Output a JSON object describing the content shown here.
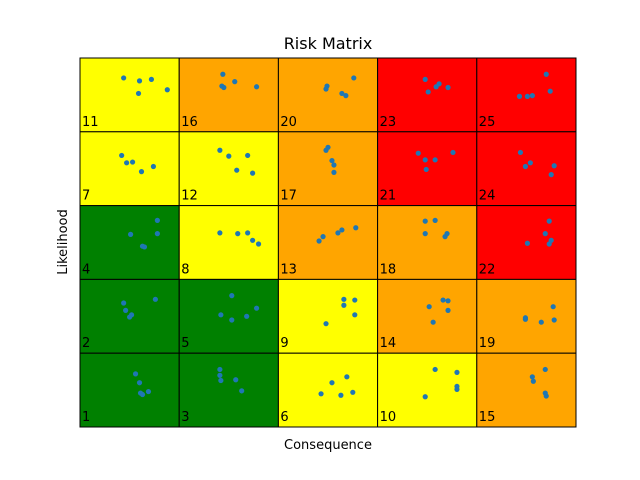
{
  "chart_data": {
    "type": "heatmap",
    "title": "Risk Matrix",
    "xlabel": "Consequence",
    "ylabel": "Likelihood",
    "rows": 5,
    "cols": 5,
    "cells": [
      [
        {
          "label": "11",
          "color": "#ffff00"
        },
        {
          "label": "16",
          "color": "#ffa500"
        },
        {
          "label": "20",
          "color": "#ffa500"
        },
        {
          "label": "23",
          "color": "#ff0000"
        },
        {
          "label": "25",
          "color": "#ff0000"
        }
      ],
      [
        {
          "label": "7",
          "color": "#ffff00"
        },
        {
          "label": "12",
          "color": "#ffff00"
        },
        {
          "label": "17",
          "color": "#ffa500"
        },
        {
          "label": "21",
          "color": "#ff0000"
        },
        {
          "label": "24",
          "color": "#ff0000"
        }
      ],
      [
        {
          "label": "4",
          "color": "#008000"
        },
        {
          "label": "8",
          "color": "#ffff00"
        },
        {
          "label": "13",
          "color": "#ffa500"
        },
        {
          "label": "18",
          "color": "#ffa500"
        },
        {
          "label": "22",
          "color": "#ff0000"
        }
      ],
      [
        {
          "label": "2",
          "color": "#008000"
        },
        {
          "label": "5",
          "color": "#008000"
        },
        {
          "label": "9",
          "color": "#ffff00"
        },
        {
          "label": "14",
          "color": "#ffa500"
        },
        {
          "label": "19",
          "color": "#ffa500"
        }
      ],
      [
        {
          "label": "1",
          "color": "#008000"
        },
        {
          "label": "3",
          "color": "#008000"
        },
        {
          "label": "6",
          "color": "#ffff00"
        },
        {
          "label": "10",
          "color": "#ffff00"
        },
        {
          "label": "15",
          "color": "#ffa500"
        }
      ]
    ],
    "point_color": "#1f77b4",
    "points": [
      [
        0.44,
        0.27
      ],
      [
        0.6,
        0.31
      ],
      [
        0.72,
        0.29
      ],
      [
        0.88,
        0.43
      ],
      [
        0.59,
        0.48
      ],
      [
        1.44,
        0.22
      ],
      [
        1.45,
        0.4
      ],
      [
        1.56,
        0.32
      ],
      [
        1.78,
        0.39
      ],
      [
        1.43,
        0.38
      ],
      [
        2.76,
        0.27
      ],
      [
        2.68,
        0.51
      ],
      [
        2.49,
        0.38
      ],
      [
        2.48,
        0.42
      ],
      [
        2.64,
        0.48
      ],
      [
        3.62,
        0.35
      ],
      [
        3.59,
        0.39
      ],
      [
        3.48,
        0.29
      ],
      [
        3.51,
        0.46
      ],
      [
        3.71,
        0.4
      ],
      [
        4.43,
        0.52
      ],
      [
        4.7,
        0.22
      ],
      [
        4.74,
        0.45
      ],
      [
        4.56,
        0.51
      ],
      [
        4.51,
        0.52
      ],
      [
        1.41,
        1.25
      ],
      [
        1.5,
        1.33
      ],
      [
        1.69,
        1.32
      ],
      [
        1.58,
        1.52
      ],
      [
        1.74,
        1.56
      ],
      [
        0.42,
        1.32
      ],
      [
        0.47,
        1.42
      ],
      [
        0.53,
        1.41
      ],
      [
        0.62,
        1.54
      ],
      [
        0.74,
        1.47
      ],
      [
        2.48,
        1.25
      ],
      [
        2.5,
        1.21
      ],
      [
        2.54,
        1.39
      ],
      [
        2.56,
        1.45
      ],
      [
        2.56,
        1.55
      ],
      [
        3.41,
        1.29
      ],
      [
        3.48,
        1.38
      ],
      [
        3.58,
        1.38
      ],
      [
        3.76,
        1.28
      ],
      [
        3.49,
        1.51
      ],
      [
        4.44,
        1.28
      ],
      [
        4.49,
        1.47
      ],
      [
        4.54,
        1.42
      ],
      [
        4.78,
        1.46
      ],
      [
        4.75,
        1.58
      ],
      [
        0.51,
        2.39
      ],
      [
        0.65,
        2.56
      ],
      [
        0.78,
        2.38
      ],
      [
        0.63,
        2.55
      ],
      [
        0.78,
        2.2
      ],
      [
        1.41,
        2.37
      ],
      [
        1.59,
        2.38
      ],
      [
        1.69,
        2.37
      ],
      [
        1.74,
        2.47
      ],
      [
        1.8,
        2.52
      ],
      [
        2.41,
        2.48
      ],
      [
        2.45,
        2.42
      ],
      [
        2.6,
        2.37
      ],
      [
        2.64,
        2.33
      ],
      [
        2.78,
        2.3
      ],
      [
        3.48,
        2.21
      ],
      [
        3.58,
        2.2
      ],
      [
        3.48,
        2.38
      ],
      [
        3.68,
        2.42
      ],
      [
        3.7,
        2.38
      ],
      [
        4.73,
        2.21
      ],
      [
        4.69,
        2.38
      ],
      [
        4.75,
        2.47
      ],
      [
        4.73,
        2.52
      ],
      [
        4.51,
        2.51
      ],
      [
        0.44,
        3.32
      ],
      [
        0.5,
        3.51
      ],
      [
        0.46,
        3.42
      ],
      [
        0.76,
        3.27
      ],
      [
        0.52,
        3.48
      ],
      [
        1.42,
        3.48
      ],
      [
        1.53,
        3.55
      ],
      [
        1.68,
        3.5
      ],
      [
        1.78,
        3.39
      ],
      [
        1.53,
        3.22
      ],
      [
        2.66,
        3.27
      ],
      [
        2.66,
        3.35
      ],
      [
        2.77,
        3.28
      ],
      [
        2.77,
        3.48
      ],
      [
        2.48,
        3.6
      ],
      [
        3.52,
        3.37
      ],
      [
        3.66,
        3.28
      ],
      [
        3.71,
        3.29
      ],
      [
        3.71,
        3.42
      ],
      [
        3.56,
        3.58
      ],
      [
        4.49,
        3.54
      ],
      [
        4.49,
        3.52
      ],
      [
        4.65,
        3.58
      ],
      [
        4.78,
        3.55
      ],
      [
        4.77,
        3.37
      ],
      [
        0.56,
        4.28
      ],
      [
        0.6,
        4.4
      ],
      [
        0.61,
        4.54
      ],
      [
        0.63,
        4.56
      ],
      [
        0.69,
        4.52
      ],
      [
        1.41,
        4.22
      ],
      [
        1.41,
        4.3
      ],
      [
        1.42,
        4.37
      ],
      [
        1.57,
        4.36
      ],
      [
        1.63,
        4.51
      ],
      [
        2.43,
        4.55
      ],
      [
        2.54,
        4.4
      ],
      [
        2.63,
        4.57
      ],
      [
        2.69,
        4.32
      ],
      [
        2.75,
        4.53
      ],
      [
        3.58,
        4.22
      ],
      [
        3.48,
        4.59
      ],
      [
        3.8,
        4.26
      ],
      [
        3.8,
        4.45
      ],
      [
        3.8,
        4.49
      ],
      [
        4.56,
        4.32
      ],
      [
        4.57,
        4.38
      ],
      [
        4.69,
        4.22
      ],
      [
        4.69,
        4.54
      ],
      [
        4.7,
        4.58
      ]
    ]
  }
}
